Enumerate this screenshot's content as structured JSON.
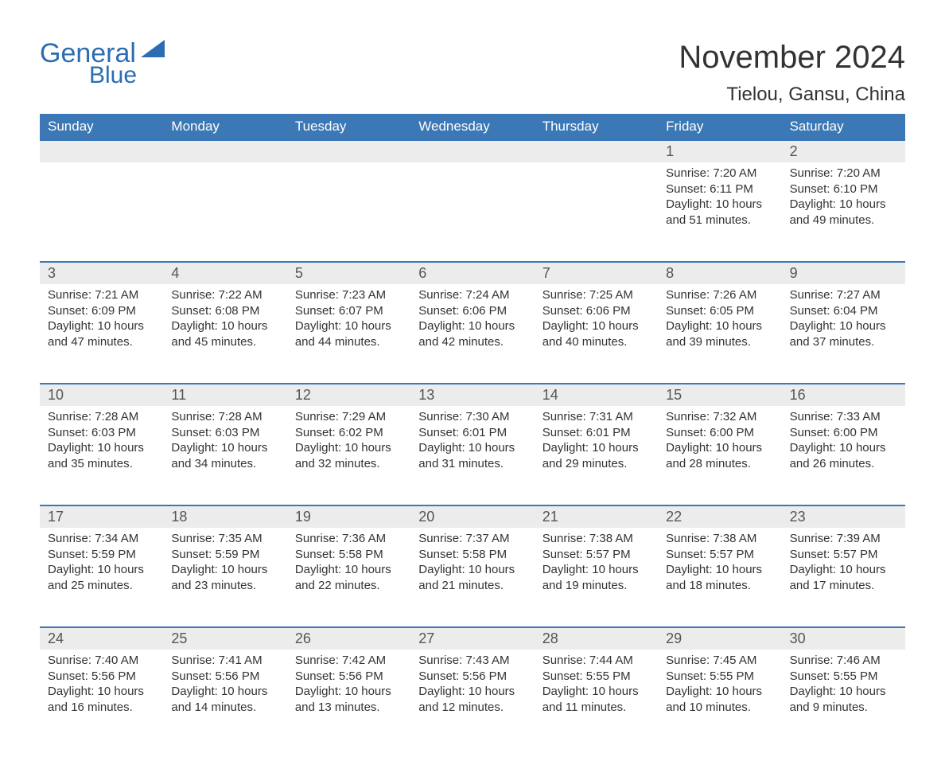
{
  "colors": {
    "header_bg": "#3b78b5",
    "header_text": "#ffffff",
    "daynum_bg": "#ececec",
    "daynum_border_top": "#3b78b5",
    "text_primary": "#333333",
    "text_muted": "#555555",
    "logo_color": "#2b6db4",
    "background": "#ffffff"
  },
  "typography": {
    "font_family": "Arial, Helvetica, sans-serif",
    "title_size_pt": 30,
    "location_size_pt": 18,
    "weekday_size_pt": 13,
    "daynum_size_pt": 14,
    "body_size_pt": 11
  },
  "logo": {
    "general": "General",
    "blue": "Blue"
  },
  "title": "November 2024",
  "location": "Tielou, Gansu, China",
  "weekdays": [
    "Sunday",
    "Monday",
    "Tuesday",
    "Wednesday",
    "Thursday",
    "Friday",
    "Saturday"
  ],
  "calendar": {
    "type": "table",
    "columns": 7,
    "rows": 5,
    "labels": {
      "sunrise": "Sunrise:",
      "sunset": "Sunset:",
      "daylight": "Daylight:"
    },
    "weeks": [
      [
        null,
        null,
        null,
        null,
        null,
        {
          "day": "1",
          "sunrise": "7:20 AM",
          "sunset": "6:11 PM",
          "daylight_a": "10 hours",
          "daylight_b": "and 51 minutes."
        },
        {
          "day": "2",
          "sunrise": "7:20 AM",
          "sunset": "6:10 PM",
          "daylight_a": "10 hours",
          "daylight_b": "and 49 minutes."
        }
      ],
      [
        {
          "day": "3",
          "sunrise": "7:21 AM",
          "sunset": "6:09 PM",
          "daylight_a": "10 hours",
          "daylight_b": "and 47 minutes."
        },
        {
          "day": "4",
          "sunrise": "7:22 AM",
          "sunset": "6:08 PM",
          "daylight_a": "10 hours",
          "daylight_b": "and 45 minutes."
        },
        {
          "day": "5",
          "sunrise": "7:23 AM",
          "sunset": "6:07 PM",
          "daylight_a": "10 hours",
          "daylight_b": "and 44 minutes."
        },
        {
          "day": "6",
          "sunrise": "7:24 AM",
          "sunset": "6:06 PM",
          "daylight_a": "10 hours",
          "daylight_b": "and 42 minutes."
        },
        {
          "day": "7",
          "sunrise": "7:25 AM",
          "sunset": "6:06 PM",
          "daylight_a": "10 hours",
          "daylight_b": "and 40 minutes."
        },
        {
          "day": "8",
          "sunrise": "7:26 AM",
          "sunset": "6:05 PM",
          "daylight_a": "10 hours",
          "daylight_b": "and 39 minutes."
        },
        {
          "day": "9",
          "sunrise": "7:27 AM",
          "sunset": "6:04 PM",
          "daylight_a": "10 hours",
          "daylight_b": "and 37 minutes."
        }
      ],
      [
        {
          "day": "10",
          "sunrise": "7:28 AM",
          "sunset": "6:03 PM",
          "daylight_a": "10 hours",
          "daylight_b": "and 35 minutes."
        },
        {
          "day": "11",
          "sunrise": "7:28 AM",
          "sunset": "6:03 PM",
          "daylight_a": "10 hours",
          "daylight_b": "and 34 minutes."
        },
        {
          "day": "12",
          "sunrise": "7:29 AM",
          "sunset": "6:02 PM",
          "daylight_a": "10 hours",
          "daylight_b": "and 32 minutes."
        },
        {
          "day": "13",
          "sunrise": "7:30 AM",
          "sunset": "6:01 PM",
          "daylight_a": "10 hours",
          "daylight_b": "and 31 minutes."
        },
        {
          "day": "14",
          "sunrise": "7:31 AM",
          "sunset": "6:01 PM",
          "daylight_a": "10 hours",
          "daylight_b": "and 29 minutes."
        },
        {
          "day": "15",
          "sunrise": "7:32 AM",
          "sunset": "6:00 PM",
          "daylight_a": "10 hours",
          "daylight_b": "and 28 minutes."
        },
        {
          "day": "16",
          "sunrise": "7:33 AM",
          "sunset": "6:00 PM",
          "daylight_a": "10 hours",
          "daylight_b": "and 26 minutes."
        }
      ],
      [
        {
          "day": "17",
          "sunrise": "7:34 AM",
          "sunset": "5:59 PM",
          "daylight_a": "10 hours",
          "daylight_b": "and 25 minutes."
        },
        {
          "day": "18",
          "sunrise": "7:35 AM",
          "sunset": "5:59 PM",
          "daylight_a": "10 hours",
          "daylight_b": "and 23 minutes."
        },
        {
          "day": "19",
          "sunrise": "7:36 AM",
          "sunset": "5:58 PM",
          "daylight_a": "10 hours",
          "daylight_b": "and 22 minutes."
        },
        {
          "day": "20",
          "sunrise": "7:37 AM",
          "sunset": "5:58 PM",
          "daylight_a": "10 hours",
          "daylight_b": "and 21 minutes."
        },
        {
          "day": "21",
          "sunrise": "7:38 AM",
          "sunset": "5:57 PM",
          "daylight_a": "10 hours",
          "daylight_b": "and 19 minutes."
        },
        {
          "day": "22",
          "sunrise": "7:38 AM",
          "sunset": "5:57 PM",
          "daylight_a": "10 hours",
          "daylight_b": "and 18 minutes."
        },
        {
          "day": "23",
          "sunrise": "7:39 AM",
          "sunset": "5:57 PM",
          "daylight_a": "10 hours",
          "daylight_b": "and 17 minutes."
        }
      ],
      [
        {
          "day": "24",
          "sunrise": "7:40 AM",
          "sunset": "5:56 PM",
          "daylight_a": "10 hours",
          "daylight_b": "and 16 minutes."
        },
        {
          "day": "25",
          "sunrise": "7:41 AM",
          "sunset": "5:56 PM",
          "daylight_a": "10 hours",
          "daylight_b": "and 14 minutes."
        },
        {
          "day": "26",
          "sunrise": "7:42 AM",
          "sunset": "5:56 PM",
          "daylight_a": "10 hours",
          "daylight_b": "and 13 minutes."
        },
        {
          "day": "27",
          "sunrise": "7:43 AM",
          "sunset": "5:56 PM",
          "daylight_a": "10 hours",
          "daylight_b": "and 12 minutes."
        },
        {
          "day": "28",
          "sunrise": "7:44 AM",
          "sunset": "5:55 PM",
          "daylight_a": "10 hours",
          "daylight_b": "and 11 minutes."
        },
        {
          "day": "29",
          "sunrise": "7:45 AM",
          "sunset": "5:55 PM",
          "daylight_a": "10 hours",
          "daylight_b": "and 10 minutes."
        },
        {
          "day": "30",
          "sunrise": "7:46 AM",
          "sunset": "5:55 PM",
          "daylight_a": "10 hours",
          "daylight_b": "and 9 minutes."
        }
      ]
    ]
  }
}
